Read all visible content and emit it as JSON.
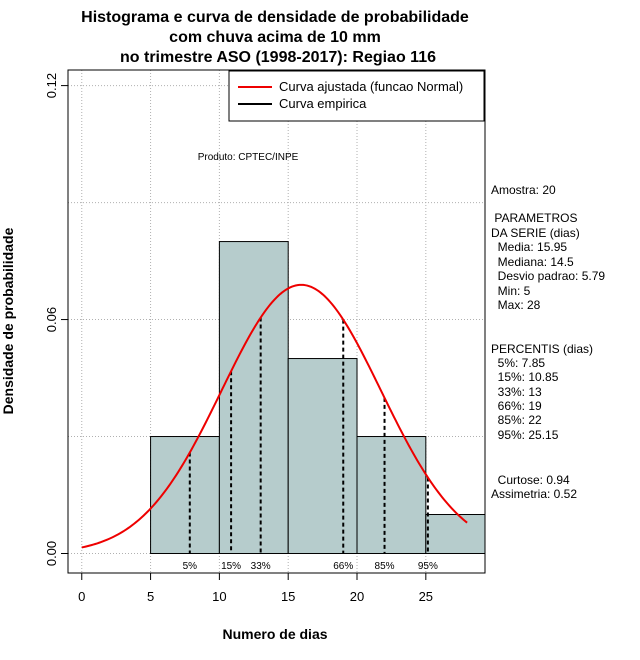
{
  "chart_data": {
    "type": "histogram",
    "title_lines": [
      "Histograma e curva de densidade de probabilidade",
      "com chuva acima de 10 mm",
      "no trimestre ASO (1998-2017): Regiao 116"
    ],
    "xlabel": "Numero de dias",
    "ylabel": "Densidade de probabilidade",
    "xlim": [
      -1,
      29.3
    ],
    "ylim": [
      -0.005,
      0.124
    ],
    "xticks": [
      0,
      5,
      10,
      15,
      20,
      25
    ],
    "yticks": [
      0.0,
      0.06,
      0.12
    ],
    "ytick_labels": [
      "0.00",
      "0.06",
      "0.12"
    ],
    "bins": [
      {
        "start": 5,
        "end": 10,
        "density": 0.03
      },
      {
        "start": 10,
        "end": 15,
        "density": 0.08
      },
      {
        "start": 15,
        "end": 20,
        "density": 0.05
      },
      {
        "start": 20,
        "end": 25,
        "density": 0.03
      },
      {
        "start": 25,
        "end": 29.3,
        "density": 0.01
      }
    ],
    "normal_fit": {
      "mean": 15.95,
      "sd": 5.79,
      "x_from": 0,
      "x_to": 28
    },
    "percentile_lines": [
      {
        "label": "5%",
        "x": 7.85
      },
      {
        "label": "15%",
        "x": 10.85
      },
      {
        "label": "33%",
        "x": 13
      },
      {
        "label": "66%",
        "x": 19
      },
      {
        "label": "85%",
        "x": 22
      },
      {
        "label": "95%",
        "x": 25.15
      }
    ],
    "legend": [
      {
        "label": "Curva ajustada (funcao Normal)",
        "color": "#ee0000"
      },
      {
        "label": "Curva empirica",
        "color": "#000000"
      }
    ],
    "credit": "Produto: CPTEC/INPE",
    "colors": {
      "bar_fill": "#b6cccc",
      "curve": "#ee0000",
      "grid": "#b0b0b0"
    }
  },
  "side_panel": {
    "sample": "Amostra: 20",
    "params_title_1": " PARAMETROS",
    "params_title_2": "DA SERIE (dias)",
    "media": "  Media: 15.95",
    "mediana": "  Mediana: 14.5",
    "desvio": "  Desvio padrao: 5.79",
    "min": "  Min: 5",
    "max": "  Max: 28",
    "percentis_title": "PERCENTIS (dias)",
    "p5": "  5%: 7.85",
    "p15": "  15%: 10.85",
    "p33": "  33%: 13",
    "p66": "  66%: 19",
    "p85": "  85%: 22",
    "p95": "  95%: 25.15",
    "curtose": "  Curtose: 0.94",
    "assimetria": "Assimetria: 0.52"
  }
}
